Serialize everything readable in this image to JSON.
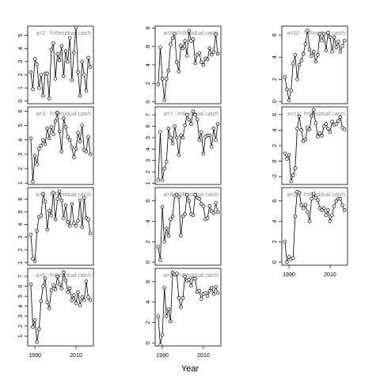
{
  "x_label": "Year",
  "chart_data": [
    {
      "type": "line",
      "label": "a=2 : f=Residual catch",
      "x": [
        1988,
        1989,
        1990,
        1991,
        1992,
        1993,
        1994,
        1995,
        1996,
        1997,
        1998,
        1999,
        2000,
        2001,
        2002,
        2003,
        2004,
        2005,
        2006,
        2007,
        2008,
        2009,
        2010,
        2011,
        2012,
        2013,
        2014,
        2015,
        2016,
        2017
      ],
      "values": [
        2.2,
        0.9,
        3.2,
        2.8,
        1.0,
        2.0,
        0.4,
        2.1,
        2.1,
        0.2,
        3.9,
        4.4,
        1.7,
        3.6,
        3.1,
        4.2,
        1.9,
        3.8,
        3.0,
        4.8,
        1.6,
        3.7,
        5.6,
        2.2,
        0.4,
        3.0,
        2.0,
        0.8,
        3.3,
        2.6
      ],
      "xlim": [
        1986.5,
        2018.5
      ],
      "ylim": [
        -0.2,
        5.7
      ],
      "yticks": [
        0,
        1,
        2,
        3,
        4,
        5
      ]
    },
    {
      "type": "line",
      "label": "a=3 : f=Residual catch",
      "x": [
        1988,
        1989,
        1990,
        1991,
        1992,
        1993,
        1994,
        1995,
        1996,
        1997,
        1998,
        1999,
        2000,
        2001,
        2002,
        2003,
        2004,
        2005,
        2006,
        2007,
        2008,
        2009,
        2010,
        2011,
        2012,
        2013,
        2014,
        2015,
        2016,
        2017
      ],
      "values": [
        4.1,
        1.1,
        2.9,
        2.3,
        3.4,
        3.6,
        4.0,
        3.7,
        4.8,
        4.1,
        4.9,
        4.4,
        5.3,
        5.9,
        4.6,
        3.2,
        5.5,
        4.9,
        4.2,
        4.0,
        3.5,
        2.8,
        3.4,
        4.5,
        3.9,
        5.0,
        3.3,
        3.2,
        4.2,
        3.0
      ],
      "xlim": [
        1986.5,
        2018.5
      ],
      "ylim": [
        0.9,
        6.3
      ],
      "yticks": [
        1,
        2,
        3,
        4,
        5,
        6
      ]
    },
    {
      "type": "line",
      "label": "a=4 : f=Residual catch",
      "x": [
        1988,
        1989,
        1990,
        1991,
        1992,
        1993,
        1994,
        1995,
        1996,
        1997,
        1998,
        1999,
        2000,
        2001,
        2002,
        2003,
        2004,
        2005,
        2006,
        2007,
        2008,
        2009,
        2010,
        2011,
        2012,
        2013,
        2014,
        2015,
        2016,
        2017
      ],
      "values": [
        3.2,
        1.3,
        1.1,
        3.5,
        4.6,
        4.7,
        6.4,
        5.8,
        3.6,
        5.1,
        4.7,
        6.5,
        4.4,
        6.0,
        6.6,
        5.9,
        4.5,
        5.5,
        4.2,
        3.9,
        5.6,
        4.1,
        3.9,
        4.3,
        5.9,
        3.8,
        6.1,
        4.5,
        4.4,
        3.3
      ],
      "xlim": [
        1986.5,
        2018.5
      ],
      "ylim": [
        0.8,
        6.9
      ],
      "yticks": [
        1,
        2,
        3,
        4,
        5,
        6
      ]
    },
    {
      "type": "line",
      "label": "a=5 : f=Residual catch",
      "x": [
        1988,
        1989,
        1990,
        1991,
        1992,
        1993,
        1994,
        1995,
        1996,
        1997,
        1998,
        1999,
        2000,
        2001,
        2002,
        2003,
        2004,
        2005,
        2006,
        2007,
        2008,
        2009,
        2010,
        2011,
        2012,
        2013,
        2014,
        2015,
        2016,
        2017
      ],
      "values": [
        6.2,
        1.9,
        2.6,
        0.4,
        1.7,
        4.5,
        6.0,
        6.8,
        4.4,
        3.8,
        5.6,
        6.1,
        5.7,
        7.0,
        6.2,
        5.8,
        7.4,
        6.6,
        5.4,
        5.8,
        4.6,
        5.1,
        4.3,
        5.4,
        4.1,
        4.9,
        4.6,
        6.5,
        4.9,
        4.6
      ],
      "xlim": [
        1986.5,
        2018.5
      ],
      "ylim": [
        0,
        7.8
      ],
      "yticks": [
        1,
        2,
        3,
        4,
        5,
        6,
        7
      ],
      "xticks": [
        1990,
        2010
      ]
    },
    {
      "type": "line",
      "label": "a=6 : f=Residual catch",
      "x": [
        1988,
        1989,
        1990,
        1991,
        1992,
        1993,
        1994,
        1995,
        1996,
        1997,
        1998,
        1999,
        2000,
        2001,
        2002,
        2003,
        2004,
        2005,
        2006,
        2007,
        2008,
        2009,
        2010,
        2011,
        2012,
        2013,
        2014,
        2015,
        2016,
        2017
      ],
      "values": [
        1.9,
        5.9,
        2.5,
        0.2,
        2.5,
        3.4,
        6.2,
        6.9,
        7.4,
        4.3,
        3.3,
        6.1,
        5.8,
        6.6,
        5.0,
        7.7,
        6.6,
        6.8,
        4.2,
        5.1,
        5.3,
        4.3,
        4.0,
        4.7,
        4.6,
        5.8,
        5.1,
        5.4,
        7.3,
        5.2
      ],
      "xlim": [
        1986.5,
        2018.5
      ],
      "ylim": [
        -0.2,
        8.2
      ],
      "yticks": [
        0,
        2,
        4,
        6,
        8
      ]
    },
    {
      "type": "line",
      "label": "a=7 : f=Residual catch",
      "x": [
        1988,
        1989,
        1990,
        1991,
        1992,
        1993,
        1994,
        1995,
        1996,
        1997,
        1998,
        1999,
        2000,
        2001,
        2002,
        2003,
        2004,
        2005,
        2006,
        2007,
        2008,
        2009,
        2010,
        2011,
        2012,
        2013,
        2014,
        2015,
        2016,
        2017
      ],
      "values": [
        1.3,
        5.5,
        1.3,
        2.3,
        2.9,
        5.8,
        5.0,
        4.5,
        6.0,
        5.0,
        3.5,
        5.2,
        5.0,
        6.1,
        7.0,
        6.6,
        6.2,
        7.3,
        7.0,
        6.6,
        4.8,
        5.5,
        3.6,
        5.1,
        5.2,
        5.2,
        4.2,
        5.8,
        4.8,
        6.2
      ],
      "xlim": [
        1986.5,
        2018.5
      ],
      "ylim": [
        0.9,
        7.7
      ],
      "yticks": [
        1,
        2,
        3,
        4,
        5,
        6,
        7
      ]
    },
    {
      "type": "line",
      "label": "a=8 : f=Residual catch",
      "x": [
        1988,
        1989,
        1990,
        1991,
        1992,
        1993,
        1994,
        1995,
        1996,
        1997,
        1998,
        1999,
        2000,
        2001,
        2002,
        2003,
        2004,
        2005,
        2006,
        2007,
        2008,
        2009,
        2010,
        2011,
        2012,
        2013,
        2014,
        2015,
        2016,
        2017
      ],
      "values": [
        1.5,
        0.2,
        5.4,
        2.0,
        3.3,
        2.6,
        4.2,
        4.5,
        6.5,
        6.6,
        6.4,
        2.6,
        4.5,
        4.7,
        6.6,
        6.0,
        4.7,
        4.6,
        6.6,
        6.3,
        6.2,
        5.7,
        5.5,
        4.2,
        4.3,
        5.5,
        5.0,
        4.8,
        5.8,
        4.9
      ],
      "xlim": [
        1986.5,
        2018.5
      ],
      "ylim": [
        -0.3,
        7.3
      ],
      "yticks": [
        0,
        2,
        4,
        6
      ]
    },
    {
      "type": "line",
      "label": "a=9 : f=Residual catch",
      "x": [
        1988,
        1989,
        1990,
        1991,
        1992,
        1993,
        1994,
        1995,
        1996,
        1997,
        1998,
        1999,
        2000,
        2001,
        2002,
        2003,
        2004,
        2005,
        2006,
        2007,
        2008,
        2009,
        2010,
        2011,
        2012,
        2013,
        2014,
        2015,
        2016,
        2017
      ],
      "values": [
        2.6,
        -0.2,
        0.8,
        5.4,
        2.6,
        3.3,
        2.1,
        6.9,
        6.7,
        6.8,
        4.4,
        3.5,
        4.4,
        6.5,
        6.1,
        6.2,
        5.6,
        6.3,
        6.3,
        5.0,
        5.1,
        4.3,
        4.8,
        4.9,
        4.6,
        5.1,
        5.4,
        4.8,
        5.5,
        4.9
      ],
      "xlim": [
        1986.5,
        2018.5
      ],
      "ylim": [
        -0.3,
        7.3
      ],
      "yticks": [
        0,
        2,
        4,
        6
      ],
      "xticks": [
        1990,
        2010
      ]
    },
    {
      "type": "line",
      "label": "a=10 : f=Residual catch",
      "x": [
        1988,
        1989,
        1990,
        1991,
        1992,
        1993,
        1994,
        1995,
        1996,
        1997,
        1998,
        1999,
        2000,
        2001,
        2002,
        2003,
        2004,
        2005,
        2006,
        2007,
        2008,
        2009,
        2010,
        2011,
        2012,
        2013,
        2014,
        2015,
        2016,
        2017
      ],
      "values": [
        2.2,
        1.1,
        0.1,
        1.0,
        3.4,
        4.2,
        2.0,
        3.3,
        3.7,
        4.3,
        5.2,
        6.4,
        4.7,
        4.1,
        4.5,
        3.6,
        4.2,
        6.1,
        5.5,
        6.1,
        4.6,
        6.2,
        5.8,
        4.5,
        5.8,
        4.9,
        5.4,
        4.5,
        5.0,
        5.5
      ],
      "xlim": [
        1986.5,
        2018.5
      ],
      "ylim": [
        -0.2,
        6.8
      ],
      "yticks": [
        0,
        2,
        4,
        6
      ]
    },
    {
      "type": "line",
      "label": "a=11 : f=Residual catch",
      "x": [
        1988,
        1989,
        1990,
        1991,
        1992,
        1993,
        1994,
        1995,
        1996,
        1997,
        1998,
        1999,
        2000,
        2001,
        2002,
        2003,
        2004,
        2005,
        2006,
        2007,
        2008,
        2009,
        2010,
        2011,
        2012,
        2013,
        2014,
        2015,
        2016,
        2017
      ],
      "values": [
        1.0,
        0.3,
        0.8,
        -2.6,
        -1.8,
        -0.9,
        4.2,
        5.8,
        4.0,
        2.6,
        2.8,
        4.3,
        4.1,
        5.8,
        6.6,
        4.9,
        3.2,
        3.6,
        3.3,
        4.5,
        4.8,
        4.2,
        3.8,
        5.1,
        4.7,
        4.8,
        5.2,
        5.7,
        4.3,
        4.1
      ],
      "xlim": [
        1986.5,
        2018.5
      ],
      "ylim": [
        -3,
        7
      ],
      "yticks": [
        -2,
        0,
        2,
        4,
        6
      ]
    },
    {
      "type": "line",
      "label": "a=12 : f=Residual catch",
      "x": [
        1988,
        1989,
        1990,
        1991,
        1992,
        1993,
        1994,
        1995,
        1996,
        1997,
        1998,
        1999,
        2000,
        2001,
        2002,
        2003,
        2004,
        2005,
        2006,
        2007,
        2008,
        2009,
        2010,
        2011,
        2012,
        2013,
        2014,
        2015,
        2016,
        2017
      ],
      "values": [
        2.0,
        0.0,
        0.5,
        0.3,
        0.4,
        4.5,
        6.9,
        6.8,
        5.6,
        5.3,
        5.6,
        4.9,
        4.0,
        6.2,
        6.7,
        6.3,
        6.1,
        5.3,
        5.1,
        5.3,
        4.6,
        5.1,
        4.0,
        4.6,
        5.5,
        6.0,
        6.2,
        6.2,
        5.6,
        5.1
      ],
      "xlim": [
        1986.5,
        2018.5
      ],
      "ylim": [
        -0.3,
        7.3
      ],
      "yticks": [
        0,
        2,
        4,
        6
      ],
      "xticks": [
        1990,
        2010
      ]
    }
  ]
}
